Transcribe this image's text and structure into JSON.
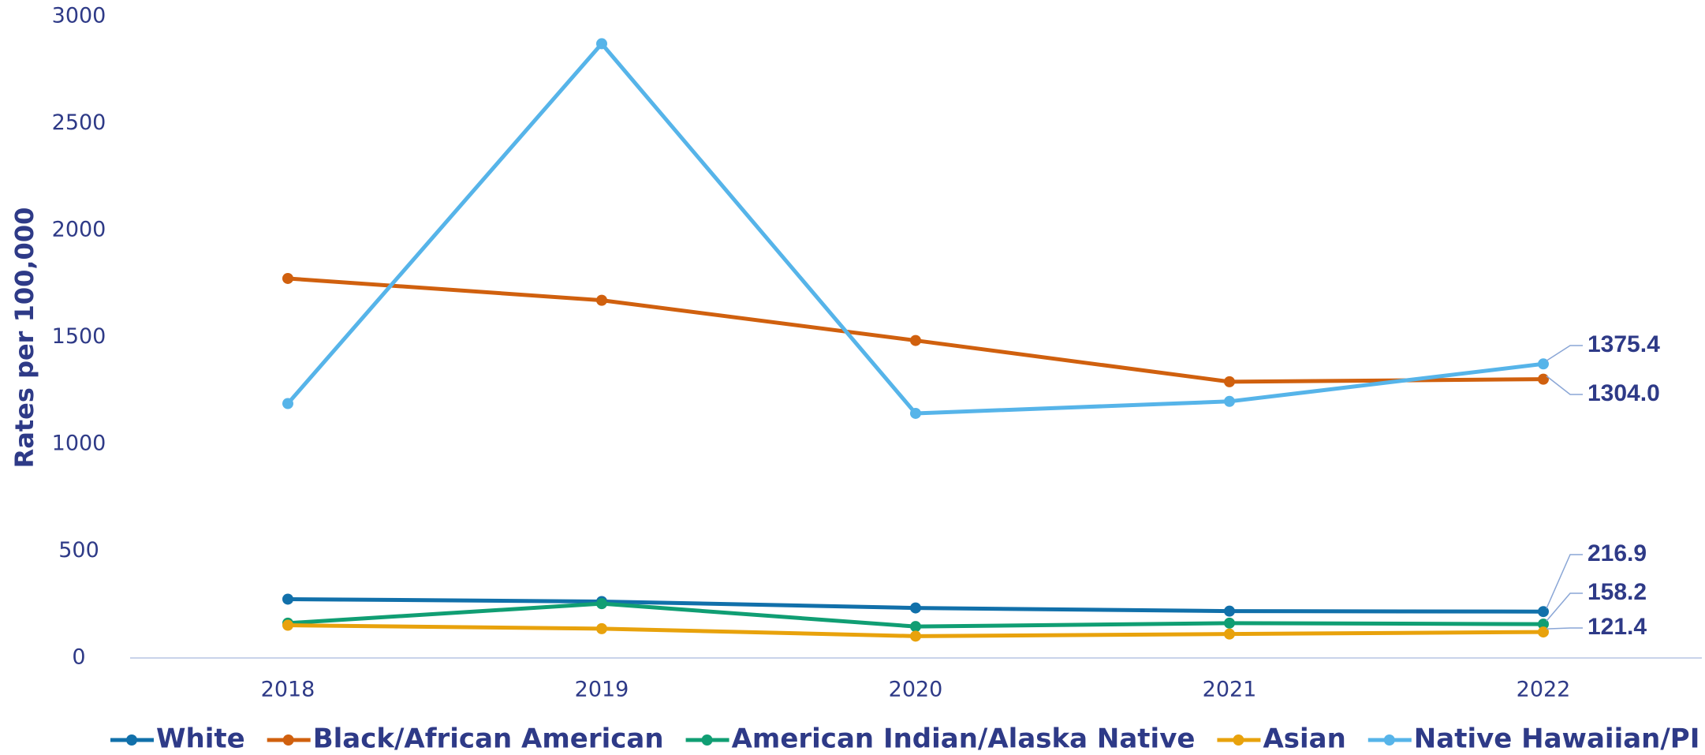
{
  "chart_data": {
    "type": "line",
    "y_label": "Rates per 100,000",
    "categories": [
      "2018",
      "2019",
      "2020",
      "2021",
      "2022"
    ],
    "ylim": [
      0,
      3000
    ],
    "yticks": [
      0,
      500,
      1000,
      1500,
      2000,
      2500,
      3000
    ],
    "series": [
      {
        "name": "White",
        "color": "#1170aa",
        "values": [
          275,
          264,
          234,
          219,
          216.9
        ],
        "value_labels": [
          null,
          null,
          null,
          null,
          "216.9"
        ]
      },
      {
        "name": "Black/African American",
        "color": "#d0600e",
        "values": [
          1775,
          1673,
          1485,
          1292,
          1304.0
        ],
        "value_labels": [
          null,
          null,
          null,
          null,
          "1304.0"
        ]
      },
      {
        "name": "American Indian/Alaska Native",
        "color": "#109e73",
        "values": [
          163,
          254,
          147,
          163,
          158.2
        ],
        "value_labels": [
          null,
          null,
          null,
          null,
          "158.2"
        ]
      },
      {
        "name": "Asian",
        "color": "#e8a20c",
        "values": [
          153,
          137,
          102,
          112,
          121.4
        ],
        "value_labels": [
          null,
          null,
          null,
          null,
          "121.4"
        ]
      },
      {
        "name": "Native Hawaiian/PI",
        "color": "#56b4e9",
        "values": [
          1190,
          2873,
          1144,
          1200,
          1375.4
        ],
        "value_labels": [
          null,
          null,
          null,
          null,
          "1375.4"
        ]
      }
    ]
  }
}
